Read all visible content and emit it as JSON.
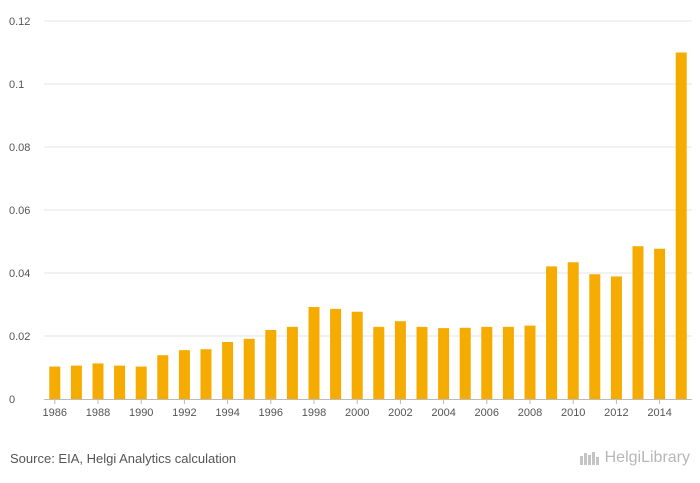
{
  "chart_data": {
    "type": "bar",
    "categories": [
      "1986",
      "1987",
      "1988",
      "1989",
      "1990",
      "1991",
      "1992",
      "1993",
      "1994",
      "1995",
      "1996",
      "1997",
      "1998",
      "1999",
      "2000",
      "2001",
      "2002",
      "2003",
      "2004",
      "2005",
      "2006",
      "2007",
      "2008",
      "2009",
      "2010",
      "2011",
      "2012",
      "2013",
      "2014",
      "2015"
    ],
    "x_tick_labels": [
      "1986",
      "1988",
      "1990",
      "1992",
      "1994",
      "1996",
      "1998",
      "2000",
      "2002",
      "2004",
      "2006",
      "2008",
      "2010",
      "2012",
      "2014"
    ],
    "values": [
      0.0103,
      0.0106,
      0.0113,
      0.0106,
      0.0103,
      0.0139,
      0.0155,
      0.0158,
      0.0181,
      0.0191,
      0.0219,
      0.0229,
      0.0292,
      0.0286,
      0.0277,
      0.0229,
      0.0247,
      0.0229,
      0.0225,
      0.0226,
      0.0229,
      0.0229,
      0.0233,
      0.0421,
      0.0434,
      0.0396,
      0.0389,
      0.0485,
      0.0477,
      0.11
    ],
    "y_ticks": [
      "0",
      "0.02",
      "0.04",
      "0.06",
      "0.08",
      "0.1",
      "0.12"
    ],
    "ylim": [
      0,
      0.12
    ],
    "title": "",
    "xlabel": "",
    "ylabel": "",
    "bar_color": "#f5ab00",
    "grid": true
  },
  "footer": {
    "source": "Source: EIA, Helgi Analytics calculation",
    "brand": "HelgiLibrary"
  }
}
